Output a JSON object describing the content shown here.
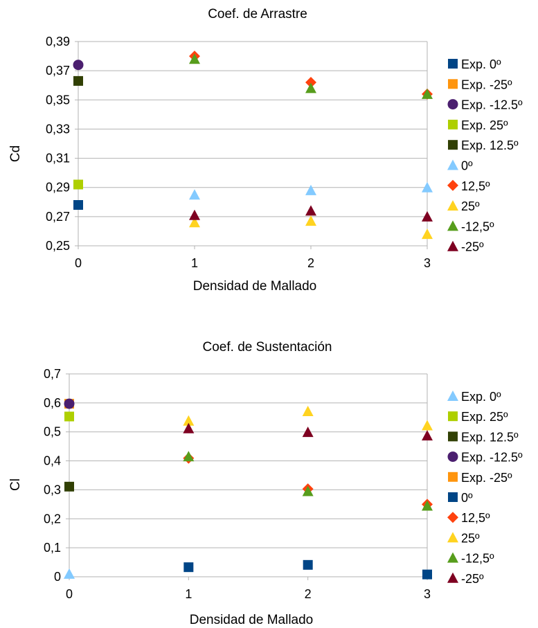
{
  "chart_data": [
    {
      "type": "scatter",
      "title": "Coef. de Arrastre",
      "xlabel": "Densidad de Mallado",
      "ylabel": "Cd",
      "xlim": [
        0,
        3
      ],
      "ylim": [
        0.25,
        0.39
      ],
      "x_ticks": [
        "0",
        "1",
        "2",
        "3"
      ],
      "y_ticks": [
        "0,25",
        "0,27",
        "0,29",
        "0,31",
        "0,33",
        "0,35",
        "0,37",
        "0,39"
      ],
      "grid": true,
      "legend_position": "right",
      "series": [
        {
          "name": "Exp. 0º",
          "marker": "square",
          "color": "#004586",
          "x": [
            0
          ],
          "y": [
            0.278
          ]
        },
        {
          "name": "Exp. -25º",
          "marker": "square",
          "color": "#ff950e",
          "x": [
            0
          ],
          "y": [
            0.292
          ]
        },
        {
          "name": "Exp. -12.5º",
          "marker": "circle",
          "color": "#4b1f6f",
          "x": [
            0
          ],
          "y": [
            0.374
          ]
        },
        {
          "name": "Exp. 25º",
          "marker": "square",
          "color": "#aecf00",
          "x": [
            0
          ],
          "y": [
            0.292
          ]
        },
        {
          "name": "Exp. 12.5º",
          "marker": "square",
          "color": "#314004",
          "x": [
            0
          ],
          "y": [
            0.363
          ]
        },
        {
          "name": "0º",
          "marker": "triangle",
          "color": "#83caff",
          "x": [
            1,
            2,
            3
          ],
          "y": [
            0.285,
            0.288,
            0.29
          ]
        },
        {
          "name": "12,5º",
          "marker": "diamond",
          "color": "#ff420e",
          "x": [
            1,
            2,
            3
          ],
          "y": [
            0.38,
            0.362,
            0.354
          ]
        },
        {
          "name": "25º",
          "marker": "triangle",
          "color": "#ffd320",
          "x": [
            1,
            2,
            3
          ],
          "y": [
            0.266,
            0.267,
            0.258
          ]
        },
        {
          "name": "-12,5º",
          "marker": "triangle",
          "color": "#579d1c",
          "x": [
            1,
            2,
            3
          ],
          "y": [
            0.378,
            0.358,
            0.354
          ]
        },
        {
          "name": "-25º",
          "marker": "triangle",
          "color": "#7e0021",
          "x": [
            1,
            2,
            3
          ],
          "y": [
            0.271,
            0.274,
            0.27
          ]
        }
      ]
    },
    {
      "type": "scatter",
      "title": "Coef. de Sustentación",
      "xlabel": "Densidad de Mallado",
      "ylabel": "Cl",
      "xlim": [
        0,
        3
      ],
      "ylim": [
        0,
        0.7
      ],
      "x_ticks": [
        "0",
        "1",
        "2",
        "3"
      ],
      "y_ticks": [
        "0",
        "0,1",
        "0,2",
        "0,3",
        "0,4",
        "0,5",
        "0,6",
        "0,7"
      ],
      "grid": true,
      "legend_position": "right",
      "series": [
        {
          "name": "Exp. 0º",
          "marker": "triangle",
          "color": "#83caff",
          "x": [
            0
          ],
          "y": [
            0.01
          ]
        },
        {
          "name": "Exp. 25º",
          "marker": "square",
          "color": "#aecf00",
          "x": [
            0
          ],
          "y": [
            0.553
          ]
        },
        {
          "name": "Exp. 12.5º",
          "marker": "square",
          "color": "#314004",
          "x": [
            0
          ],
          "y": [
            0.311
          ]
        },
        {
          "name": "Exp. -25º",
          "marker": "square",
          "color": "#ff950e",
          "x": [
            0
          ],
          "y": [
            0.597
          ]
        },
        {
          "name": "Exp. -12.5º",
          "marker": "circle",
          "color": "#4b1f6f",
          "x": [
            0
          ],
          "y": [
            0.597
          ]
        },
        {
          "name": "0º",
          "marker": "square",
          "color": "#004586",
          "x": [
            1,
            2,
            3
          ],
          "y": [
            0.033,
            0.041,
            0.008
          ]
        },
        {
          "name": "12,5º",
          "marker": "diamond",
          "color": "#ff420e",
          "x": [
            1,
            2,
            3
          ],
          "y": [
            0.409,
            0.303,
            0.25
          ]
        },
        {
          "name": "25º",
          "marker": "triangle",
          "color": "#ffd320",
          "x": [
            1,
            2,
            3
          ],
          "y": [
            0.538,
            0.571,
            0.522
          ]
        },
        {
          "name": "-12,5º",
          "marker": "triangle",
          "color": "#579d1c",
          "x": [
            1,
            2,
            3
          ],
          "y": [
            0.415,
            0.295,
            0.245
          ]
        },
        {
          "name": "-25º",
          "marker": "triangle",
          "color": "#7e0021",
          "x": [
            1,
            2,
            3
          ],
          "y": [
            0.512,
            0.499,
            0.487
          ]
        }
      ],
      "legend_order": [
        "Exp. 0º",
        "Exp. 25º",
        "Exp. 12.5º",
        "Exp. -12.5º",
        "Exp. -25º",
        "0º",
        "12,5º",
        "25º",
        "-12,5º",
        "-25º"
      ]
    }
  ]
}
